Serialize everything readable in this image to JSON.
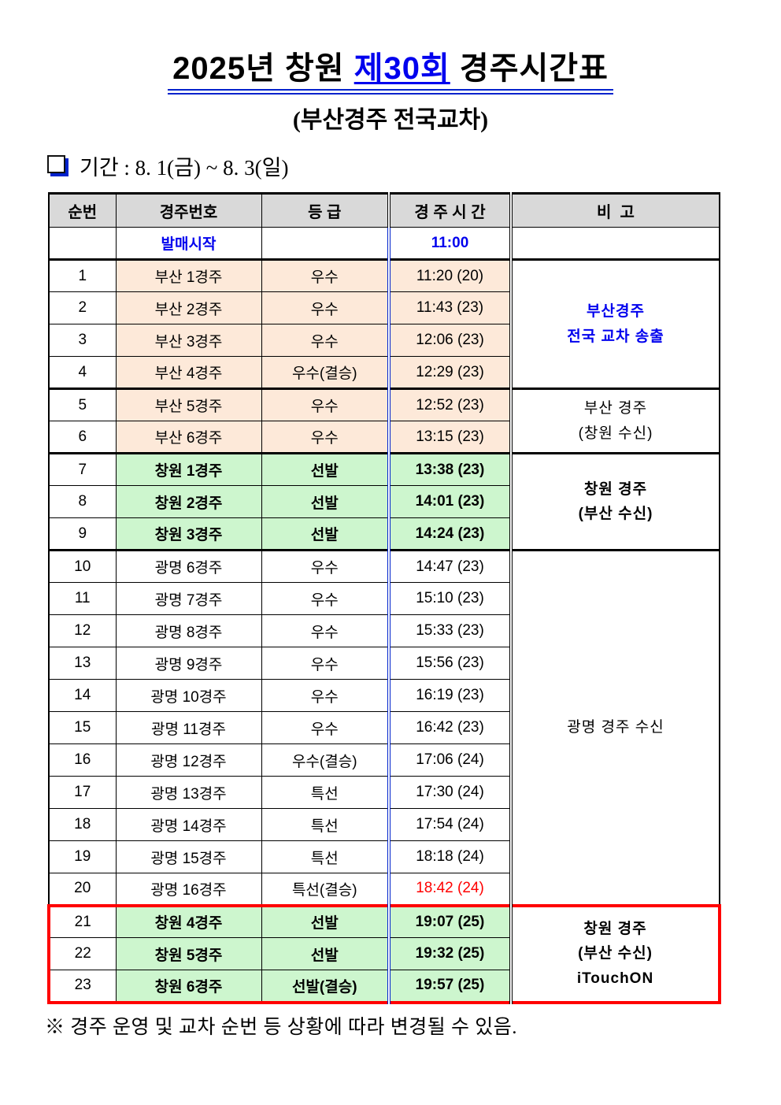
{
  "page": {
    "title_prefix": "2025년 창원 ",
    "title_highlight": "제30회",
    "title_suffix": " 경주시간표",
    "subtitle": "(부산경주 전국교차)",
    "period": "기간 : 8. 1(금) ~ 8. 3(일)",
    "footnote": "※ 경주 운영 및 교차 순번 등 상황에 따라 변경될 수 있음."
  },
  "colors": {
    "blue_text": "#0000EE",
    "line_blue": "#0022CC",
    "red": "#FF0000",
    "busan_bg": "#FDE9D9",
    "changwon_bg": "#CDF6CE",
    "header_gray": "#D9D9D9"
  },
  "table": {
    "columns": [
      "순번",
      "경주번호",
      "등 급",
      "경 주 시 간",
      "비  고"
    ],
    "presale": {
      "race": "발매시작",
      "time": "11:00"
    },
    "rows": [
      {
        "no": "1",
        "race": "부산 1경주",
        "grade": "우수",
        "time": "11:20 (20)",
        "theme": "busan",
        "group_start": true,
        "note": {
          "span": 4,
          "lines": [
            "부산경주",
            "전국 교차 송출"
          ],
          "blue": true,
          "bold": true
        }
      },
      {
        "no": "2",
        "race": "부산 2경주",
        "grade": "우수",
        "time": "11:43 (23)",
        "theme": "busan"
      },
      {
        "no": "3",
        "race": "부산 3경주",
        "grade": "우수",
        "time": "12:06 (23)",
        "theme": "busan"
      },
      {
        "no": "4",
        "race": "부산 4경주",
        "grade": "우수(결승)",
        "time": "12:29 (23)",
        "theme": "busan"
      },
      {
        "no": "5",
        "race": "부산 5경주",
        "grade": "우수",
        "time": "12:52 (23)",
        "theme": "busan",
        "group_start": true,
        "note": {
          "span": 2,
          "lines": [
            "부산 경주",
            "(창원 수신)"
          ]
        }
      },
      {
        "no": "6",
        "race": "부산 6경주",
        "grade": "우수",
        "time": "13:15 (23)",
        "theme": "busan"
      },
      {
        "no": "7",
        "race": "창원 1경주",
        "grade": "선발",
        "time": "13:38 (23)",
        "theme": "changwon",
        "bold": true,
        "group_start": true,
        "note": {
          "span": 3,
          "lines": [
            "창원 경주",
            "(부산 수신)"
          ],
          "bold": true
        }
      },
      {
        "no": "8",
        "race": "창원 2경주",
        "grade": "선발",
        "time": "14:01 (23)",
        "theme": "changwon",
        "bold": true
      },
      {
        "no": "9",
        "race": "창원 3경주",
        "grade": "선발",
        "time": "14:24 (23)",
        "theme": "changwon",
        "bold": true
      },
      {
        "no": "10",
        "race": "광명 6경주",
        "grade": "우수",
        "time": "14:47 (23)",
        "group_start": true,
        "note": {
          "span": 11,
          "lines": [
            "광명 경주 수신"
          ]
        }
      },
      {
        "no": "11",
        "race": "광명 7경주",
        "grade": "우수",
        "time": "15:10 (23)"
      },
      {
        "no": "12",
        "race": "광명 8경주",
        "grade": "우수",
        "time": "15:33 (23)"
      },
      {
        "no": "13",
        "race": "광명 9경주",
        "grade": "우수",
        "time": "15:56 (23)"
      },
      {
        "no": "14",
        "race": "광명 10경주",
        "grade": "우수",
        "time": "16:19 (23)"
      },
      {
        "no": "15",
        "race": "광명 11경주",
        "grade": "우수",
        "time": "16:42 (23)"
      },
      {
        "no": "16",
        "race": "광명 12경주",
        "grade": "우수(결승)",
        "time": "17:06 (24)"
      },
      {
        "no": "17",
        "race": "광명 13경주",
        "grade": "특선",
        "time": "17:30 (24)"
      },
      {
        "no": "18",
        "race": "광명 14경주",
        "grade": "특선",
        "time": "17:54 (24)"
      },
      {
        "no": "19",
        "race": "광명 15경주",
        "grade": "특선",
        "time": "18:18 (24)"
      },
      {
        "no": "20",
        "race": "광명 16경주",
        "grade": "특선(결승)",
        "time": "18:42 (24)",
        "time_red": true
      },
      {
        "no": "21",
        "race": "창원 4경주",
        "grade": "선발",
        "time": "19:07 (25)",
        "theme": "changwon",
        "bold": true,
        "group_start": true,
        "red_box": true,
        "note": {
          "span": 3,
          "lines": [
            "창원 경주",
            "(부산 수신)",
            "iTouchON"
          ],
          "bold": true
        }
      },
      {
        "no": "22",
        "race": "창원 5경주",
        "grade": "선발",
        "time": "19:32 (25)",
        "theme": "changwon",
        "bold": true,
        "red_box": true
      },
      {
        "no": "23",
        "race": "창원 6경주",
        "grade": "선발(결승)",
        "time": "19:57 (25)",
        "theme": "changwon",
        "bold": true,
        "red_box": true
      }
    ]
  }
}
